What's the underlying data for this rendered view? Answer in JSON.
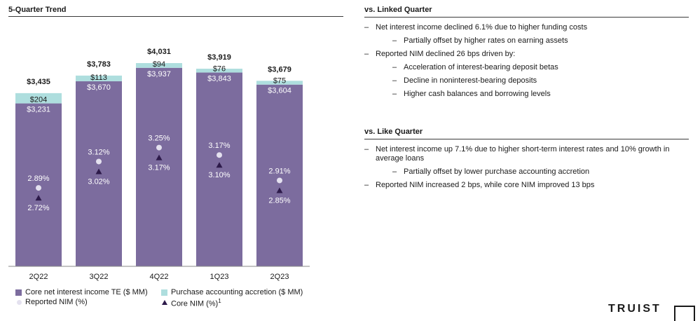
{
  "left_title": "5-Quarter Trend",
  "chart_data": {
    "type": "bar",
    "title": "5-Quarter Trend",
    "categories": [
      "2Q22",
      "3Q22",
      "4Q22",
      "1Q23",
      "2Q23"
    ],
    "series": [
      {
        "name": "Core net interest income TE ($ MM)",
        "values": [
          3231,
          3670,
          3937,
          3843,
          3604
        ],
        "labels": [
          "$3,231",
          "$3,670",
          "$3,937",
          "$3,843",
          "$3,604"
        ]
      },
      {
        "name": "Purchase accounting accretion ($ MM)",
        "values": [
          204,
          113,
          94,
          76,
          75
        ],
        "labels": [
          "$204",
          "$113",
          "$94",
          "$76",
          "$75"
        ]
      }
    ],
    "totals": [
      3435,
      3783,
      4031,
      3919,
      3679
    ],
    "total_labels": [
      "$3,435",
      "$3,783",
      "$4,031",
      "$3,919",
      "$3,679"
    ],
    "reported_nim": {
      "name": "Reported NIM (%)",
      "values": [
        2.89,
        3.12,
        3.25,
        3.17,
        2.91
      ],
      "labels": [
        "2.89%",
        "3.12%",
        "3.25%",
        "3.17%",
        "2.91%"
      ]
    },
    "core_nim": {
      "name": "Core NIM (%)",
      "values": [
        2.72,
        3.02,
        3.17,
        3.1,
        2.85
      ],
      "labels": [
        "2.72%",
        "3.02%",
        "3.17%",
        "3.10%",
        "2.85%"
      ]
    },
    "stacked": true,
    "ylim": [
      0,
      4031
    ],
    "grid": false,
    "legend": "bottom"
  },
  "colors": {
    "core_nii": "#7c6c9e",
    "accretion": "#aedede",
    "reported_nim_marker": "#e4e1ef",
    "core_nim_marker": "#2d1a4a",
    "label_on_bar": "#ffffff",
    "text": "#1a1a1a"
  },
  "legend": {
    "core_nii": "Core net interest income TE ($ MM)",
    "accretion": "Purchase accounting accretion ($ MM)",
    "reported_nim": "Reported NIM (%)",
    "core_nim": "Core NIM (%)",
    "core_nim_footnote": "1"
  },
  "linked": {
    "title": "vs. Linked Quarter",
    "bullets": [
      {
        "level": 1,
        "text": "Net interest income declined 6.1% due to higher funding costs"
      },
      {
        "level": 2,
        "text": "Partially offset by higher rates on earning assets"
      },
      {
        "level": 1,
        "text": "Reported NIM declined 26 bps driven by:"
      },
      {
        "level": 2,
        "text": "Acceleration of interest-bearing deposit betas"
      },
      {
        "level": 2,
        "text": "Decline in noninterest-bearing deposits"
      },
      {
        "level": 2,
        "text": "Higher cash balances and borrowing levels"
      }
    ]
  },
  "like": {
    "title": "vs. Like Quarter",
    "bullets": [
      {
        "level": 1,
        "text": "Net interest income up 7.1% due to higher short-term interest rates and 10% growth in average loans"
      },
      {
        "level": 2,
        "text": "Partially offset by lower purchase accounting accretion"
      },
      {
        "level": 1,
        "text": "Reported NIM increased 2 bps, while core NIM improved 13 bps"
      }
    ]
  },
  "dash_glyph": "–",
  "logo_fragment": "TRUIST"
}
